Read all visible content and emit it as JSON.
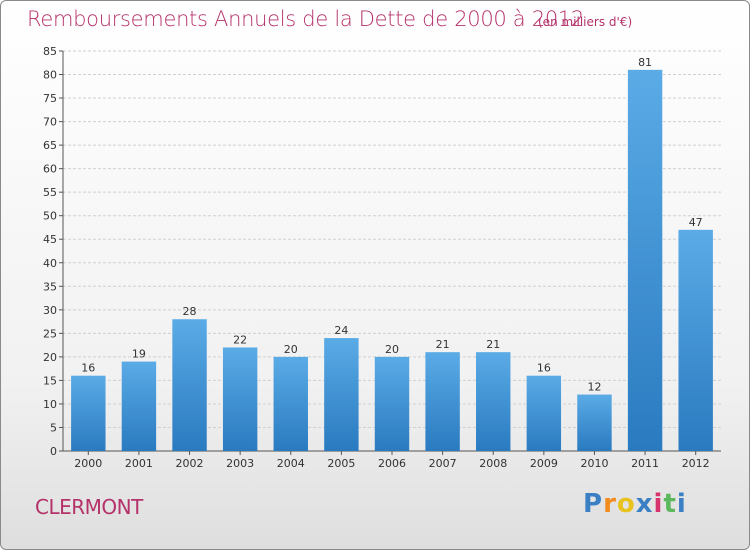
{
  "header": {
    "title": "Remboursements Annuels de la Dette de 2000 à 2012",
    "unit": "(en milliers d'€)"
  },
  "footer": {
    "town": "CLERMONT",
    "logo": [
      "P",
      "r",
      "o",
      "x",
      "i",
      "t",
      "i"
    ],
    "logo_colors": [
      "#3b7fc4",
      "#f28c1e",
      "#e8c21d",
      "#3b7fc4",
      "#d6336c",
      "#5cb85c",
      "#3b7fc4"
    ]
  },
  "chart_data": {
    "type": "bar",
    "title": "Remboursements Annuels de la Dette de 2000 à 2012",
    "subtitle": "(en milliers d'€)",
    "categories": [
      "2000",
      "2001",
      "2002",
      "2003",
      "2004",
      "2005",
      "2006",
      "2007",
      "2008",
      "2009",
      "2010",
      "2011",
      "2012"
    ],
    "values": [
      16,
      19,
      28,
      22,
      20,
      24,
      20,
      21,
      21,
      16,
      12,
      81,
      47
    ],
    "ylim": [
      0,
      85
    ],
    "yticks": [
      0,
      5,
      10,
      15,
      20,
      25,
      30,
      35,
      40,
      45,
      50,
      55,
      60,
      65,
      70,
      75,
      80,
      85
    ],
    "grid": true,
    "bar_color_top": "#5aabe6",
    "bar_color_bottom": "#2a7ac0"
  }
}
